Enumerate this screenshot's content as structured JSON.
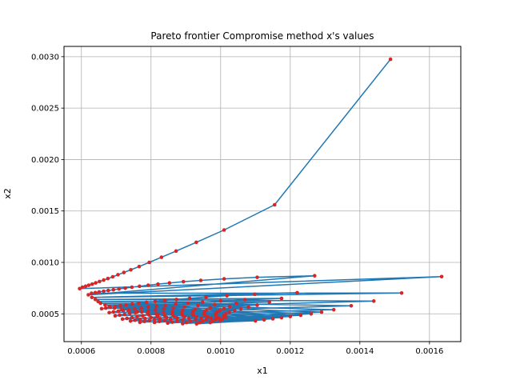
{
  "chart_data": {
    "type": "line",
    "title": "Pareto frontier Compromise method x's values",
    "xlabel": "x1",
    "ylabel": "x2",
    "xlim": [
      0.00055,
      0.00169
    ],
    "ylim": [
      0.00023,
      0.0031
    ],
    "xticks": [
      0.0006,
      0.0008,
      0.001,
      0.0012,
      0.0014,
      0.0016
    ],
    "yticks": [
      0.0005,
      0.001,
      0.0015,
      0.002,
      0.0025,
      0.003
    ],
    "grid": true,
    "line_color": "#1f77b4",
    "marker_color": "#d62728",
    "series": [
      {
        "x": [
          0.001488,
          0.001155,
          0.00101,
          0.00093,
          0.000872,
          0.00083,
          0.000795,
          0.000766,
          0.000742,
          0.000722,
          0.000705,
          0.00069,
          0.000676,
          0.000664,
          0.000652,
          0.000641,
          0.000631,
          0.000621,
          0.000612,
          0.000603,
          0.000595,
          0.001635,
          0.00062,
          0.00127,
          0.001105,
          0.00101,
          0.000943,
          0.000893,
          0.000853,
          0.00082,
          0.000792,
          0.000767,
          0.000745,
          0.000726,
          0.000708,
          0.000692,
          0.000677,
          0.000664,
          0.000651,
          0.00064,
          0.000629,
          0.00152,
          0.00063,
          0.00122,
          0.001098,
          0.001018,
          0.000958,
          0.000911,
          0.000873,
          0.00084,
          0.000812,
          0.000787,
          0.000765,
          0.000746,
          0.000728,
          0.000712,
          0.000697,
          0.000683,
          0.00067,
          0.000658,
          0.00144,
          0.00064,
          0.001175,
          0.00107,
          0.001,
          0.000948,
          0.000906,
          0.000871,
          0.000841,
          0.000815,
          0.000792,
          0.000772,
          0.000753,
          0.000736,
          0.00072,
          0.000706,
          0.000692,
          0.00068,
          0.001375,
          0.000648,
          0.00114,
          0.001045,
          0.000983,
          0.000935,
          0.000896,
          0.000864,
          0.000837,
          0.000813,
          0.000792,
          0.000773,
          0.000755,
          0.000739,
          0.000724,
          0.00071,
          0.000697,
          0.001325,
          0.000655,
          0.001105,
          0.001026,
          0.00097,
          0.000927,
          0.000891,
          0.000862,
          0.000836,
          0.000814,
          0.000794,
          0.000776,
          0.00076,
          0.000745,
          0.000731,
          0.000718,
          0.00129,
          0.000668,
          0.00108,
          0.00101,
          0.00096,
          0.000921,
          0.000889,
          0.000862,
          0.000839,
          0.000818,
          0.0008,
          0.000783,
          0.000768,
          0.000754,
          0.000741,
          0.00126,
          0.00068,
          0.001058,
          0.000998,
          0.000954,
          0.000919,
          0.00089,
          0.000866,
          0.000845,
          0.000826,
          0.00081,
          0.000795,
          0.000781,
          0.000768,
          0.00123,
          0.000695,
          0.00104,
          0.00099,
          0.000952,
          0.000921,
          0.000896,
          0.000875,
          0.000856,
          0.000839,
          0.000824,
          0.00081,
          0.0012,
          0.000715,
          0.001025,
          0.000986,
          0.000955,
          0.00093,
          0.000909,
          0.000891,
          0.000875,
          0.000861,
          0.000848,
          0.001175,
          0.000735,
          0.001015,
          0.000985,
          0.000962,
          0.000944,
          0.000928,
          0.000914,
          0.000902,
          0.000891,
          0.00115,
          0.00076,
          0.00101,
          0.000988,
          0.000972,
          0.000959,
          0.000948,
          0.000939,
          0.000931,
          0.001125,
          0.00079,
          0.00101,
          0.000995,
          0.000985,
          0.000977,
          0.00097,
          0.0011,
          0.00082,
          0.001015,
          0.001005,
          0.000998
        ],
        "y": [
          0.002975,
          0.00156,
          0.001315,
          0.001195,
          0.00111,
          0.00105,
          0.001,
          0.00096,
          0.000928,
          0.000902,
          0.00088,
          0.00086,
          0.000843,
          0.000828,
          0.000814,
          0.000801,
          0.000789,
          0.000778,
          0.000768,
          0.000759,
          0.000745,
          0.000862,
          0.000685,
          0.00087,
          0.000855,
          0.00084,
          0.000825,
          0.000812,
          0.0008,
          0.000789,
          0.000778,
          0.000768,
          0.000759,
          0.00075,
          0.000742,
          0.000734,
          0.000727,
          0.00072,
          0.000713,
          0.000706,
          0.0007,
          0.000702,
          0.00066,
          0.000705,
          0.00069,
          0.000676,
          0.000663,
          0.000651,
          0.00064,
          0.00063,
          0.00062,
          0.000611,
          0.000602,
          0.000594,
          0.000586,
          0.000578,
          0.000571,
          0.000564,
          0.000557,
          0.00055,
          0.000624,
          0.00064,
          0.00065,
          0.000638,
          0.000626,
          0.000615,
          0.000604,
          0.000594,
          0.000584,
          0.000575,
          0.000566,
          0.000557,
          0.000549,
          0.000541,
          0.000533,
          0.000526,
          0.000519,
          0.000512,
          0.000578,
          0.00062,
          0.000615,
          0.000603,
          0.000591,
          0.000579,
          0.000568,
          0.000557,
          0.000547,
          0.000537,
          0.000528,
          0.000519,
          0.000511,
          0.000503,
          0.000495,
          0.000488,
          0.000481,
          0.00054,
          0.000603,
          0.000585,
          0.000572,
          0.000559,
          0.000546,
          0.000534,
          0.000522,
          0.000511,
          0.0005,
          0.00049,
          0.000481,
          0.000472,
          0.000464,
          0.000456,
          0.000449,
          0.000517,
          0.000587,
          0.000565,
          0.000551,
          0.000537,
          0.000523,
          0.00051,
          0.000497,
          0.000485,
          0.000474,
          0.000464,
          0.000455,
          0.000446,
          0.000438,
          0.00043,
          0.0005,
          0.000571,
          0.000547,
          0.000532,
          0.000517,
          0.000503,
          0.000489,
          0.000476,
          0.000464,
          0.000453,
          0.000443,
          0.000434,
          0.000426,
          0.000418,
          0.000486,
          0.000557,
          0.00053,
          0.000515,
          0.0005,
          0.000486,
          0.000472,
          0.000459,
          0.000447,
          0.000436,
          0.000426,
          0.000417,
          0.000474,
          0.000543,
          0.000515,
          0.0005,
          0.000485,
          0.00047,
          0.000456,
          0.000443,
          0.000431,
          0.00042,
          0.00041,
          0.000463,
          0.00053,
          0.0005,
          0.000485,
          0.00047,
          0.000455,
          0.000441,
          0.000428,
          0.000416,
          0.000405,
          0.000452,
          0.000518,
          0.000487,
          0.000472,
          0.000457,
          0.000442,
          0.000428,
          0.000415,
          0.000403,
          0.000442,
          0.000506,
          0.000475,
          0.00046,
          0.000445,
          0.00043,
          0.000416,
          0.000432,
          0.000495,
          0.000464,
          0.000449,
          0.000435
        ]
      }
    ]
  }
}
